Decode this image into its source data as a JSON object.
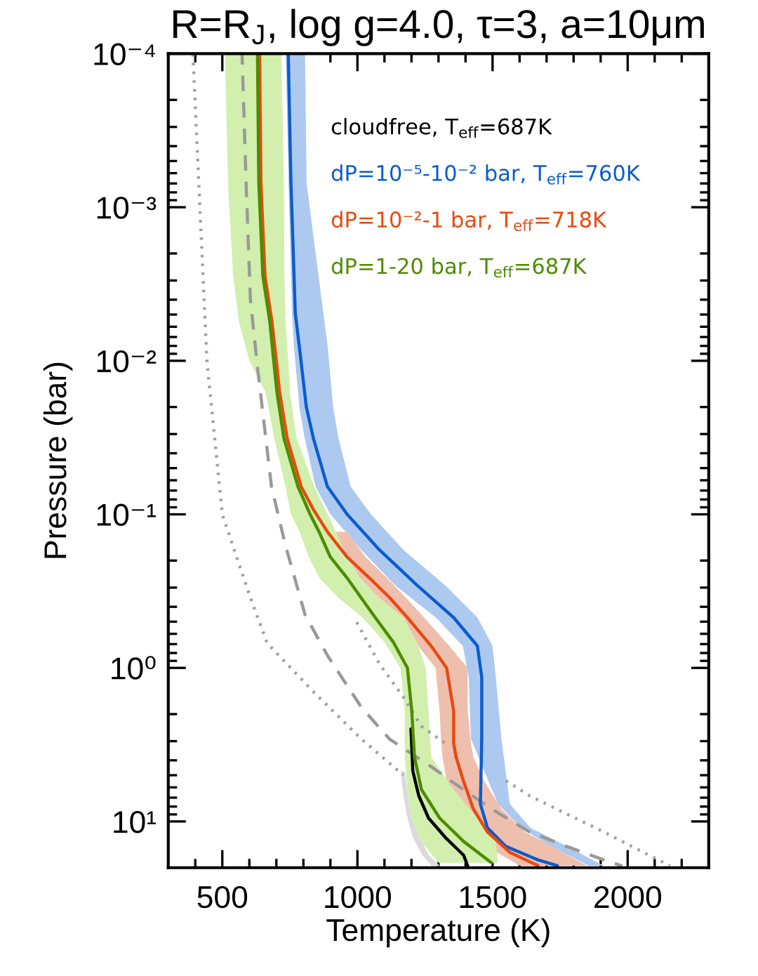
{
  "chart_data": {
    "type": "line",
    "orientation": "horizontal",
    "title": "R=R$_{J}$, log g=4.0, τ=3, a=10μm",
    "xlabel": "Temperature (K)",
    "ylabel": "Pressure (bar)",
    "log": "y",
    "legend": "top right",
    "xlim": [
      300,
      2300
    ],
    "ylim": [
      20,
      0.0001
    ],
    "xticks": [
      {
        "value": 400,
        "label": null
      },
      500,
      {
        "value": 600,
        "label": null
      },
      {
        "value": 700,
        "label": null
      },
      {
        "value": 800,
        "label": null
      },
      {
        "value": 900,
        "label": null
      },
      1000,
      {
        "value": 1100,
        "label": null
      },
      {
        "value": 1200,
        "label": null
      },
      {
        "value": 1300,
        "label": null
      },
      {
        "value": 1400,
        "label": null
      },
      1500,
      {
        "value": 1600,
        "label": null
      },
      {
        "value": 1700,
        "label": null
      },
      {
        "value": 1800,
        "label": null
      },
      {
        "value": 1900,
        "label": null
      },
      2000,
      {
        "value": 2100,
        "label": null
      },
      {
        "value": 2200,
        "label": null
      }
    ],
    "yticks": [
      {
        "value": 0.0001,
        "label": "10⁻⁴"
      },
      {
        "value": 0.0002,
        "label": null
      },
      {
        "value": 0.0003,
        "label": null
      },
      {
        "value": 0.0004,
        "label": null
      },
      {
        "value": 0.0005,
        "label": null
      },
      {
        "value": 0.0006,
        "label": null
      },
      {
        "value": 0.0007,
        "label": null
      },
      {
        "value": 0.0008,
        "label": null
      },
      {
        "value": 0.0009,
        "label": null
      },
      {
        "value": 0.001,
        "label": "10⁻³"
      },
      {
        "value": 0.002,
        "label": null
      },
      {
        "value": 0.003,
        "label": null
      },
      {
        "value": 0.004,
        "label": null
      },
      {
        "value": 0.005,
        "label": null
      },
      {
        "value": 0.006,
        "label": null
      },
      {
        "value": 0.007,
        "label": null
      },
      {
        "value": 0.008,
        "label": null
      },
      {
        "value": 0.009,
        "label": null
      },
      {
        "value": 0.01,
        "label": "10⁻²"
      },
      {
        "value": 0.02,
        "label": null
      },
      {
        "value": 0.03,
        "label": null
      },
      {
        "value": 0.04,
        "label": null
      },
      {
        "value": 0.05,
        "label": null
      },
      {
        "value": 0.06,
        "label": null
      },
      {
        "value": 0.07,
        "label": null
      },
      {
        "value": 0.08,
        "label": null
      },
      {
        "value": 0.09,
        "label": null
      },
      {
        "value": 0.1,
        "label": "10⁻¹"
      },
      {
        "value": 0.2,
        "label": null
      },
      {
        "value": 0.3,
        "label": null
      },
      {
        "value": 0.4,
        "label": null
      },
      {
        "value": 0.5,
        "label": null
      },
      {
        "value": 0.6,
        "label": null
      },
      {
        "value": 0.7,
        "label": null
      },
      {
        "value": 0.8,
        "label": null
      },
      {
        "value": 0.9,
        "label": null
      },
      {
        "value": 1,
        "label": "10⁰"
      },
      {
        "value": 2,
        "label": null
      },
      {
        "value": 3,
        "label": null
      },
      {
        "value": 4,
        "label": null
      },
      {
        "value": 5,
        "label": null
      },
      {
        "value": 6,
        "label": null
      },
      {
        "value": 7,
        "label": null
      },
      {
        "value": 8,
        "label": null
      },
      {
        "value": 9,
        "label": null
      },
      {
        "value": 10,
        "label": "10¹"
      }
    ],
    "series": [
      {
        "color": "#a0a0a0",
        "line_style": "dotted",
        "x": [
          0.0001,
          0.01,
          0.1,
          0.33,
          0.69,
          1.43,
          2.9,
          5.0
        ],
        "values": [
          391,
          443,
          500,
          599,
          666,
          837,
          1014,
          1170
        ]
      },
      {
        "color": "#a0a0a0",
        "line_style": "dotted",
        "x": [
          0.47,
          0.94,
          1.55,
          2.4,
          3.1,
          4.1,
          5.2,
          6.8,
          8.9,
          11.7,
          15.7,
          19.4
        ],
        "values": [
          988,
          1081,
          1170,
          1237,
          1325,
          null,
          1533,
          1637,
          1772,
          1912,
          2052,
          2156
        ]
      },
      {
        "color": "#999999",
        "line_style": "dashed",
        "x": [
          0.0001,
          0.0007,
          0.004,
          0.011,
          0.066,
          0.16,
          0.45,
          0.83,
          1.8,
          2.9,
          4.4,
          5.6,
          8.3,
          11.7,
          14.5,
          17.8,
          19.5
        ],
        "values": [
          573,
          588,
          604,
          630,
          682,
          734,
          806,
          889,
          1014,
          1118,
          1273,
          1356,
          1496,
          1637,
          1772,
          1912,
          1980
        ]
      },
      {
        "name": "cloudfree, T$_{eff}$=687K",
        "color": "#000000",
        "line_style": "solid",
        "x": [
          2.5,
          4.7,
          6.8,
          9.5,
          12.7,
          16.6,
          19.5
        ],
        "values": [
          1198,
          1205,
          1227,
          1263,
          1325,
          1393,
          1408
        ],
        "lower": [
          null,
          1160,
          1170,
          1185,
          1205,
          1240,
          1275
        ],
        "upper": [
          null,
          1175,
          1188,
          1201,
          1230,
          1265,
          1305
        ]
      },
      {
        "name": "dP=10⁻⁵-10⁻² bar, T$_{eff}$=760K",
        "color": "#0a5cd0",
        "line_style": "solid",
        "x": [
          0.0001,
          0.0007,
          0.0049,
          0.0081,
          0.02,
          0.032,
          0.066,
          0.1,
          0.17,
          0.29,
          0.47,
          0.72,
          1.15,
          2.9,
          7.7,
          11,
          14.5,
          17.8,
          19.4
        ],
        "values": [
          744,
          754,
          770,
          785,
          811,
          837,
          889,
          962,
          1081,
          1221,
          1356,
          1444,
          1460,
          1460,
          1455,
          1481,
          1548,
          1668,
          1740
        ],
        "lower": [
          735,
          745,
          758,
          765,
          785,
          805,
          845,
          900,
          1014,
          1140,
          1290,
          1390,
          1412,
          1420,
          1520,
          1605,
          1715,
          1815,
          1855
        ],
        "upper": [
          806,
          812,
          874,
          890,
          910,
          930,
          975,
          1050,
          1170,
          1325,
          1444,
          1500,
          1512,
          1533,
          1564,
          1640,
          1775,
          1870,
          1912
        ]
      },
      {
        "name": "dP=10⁻²-1 bar, T$_{eff}$=718K",
        "color": "#e84a10",
        "line_style": "solid",
        "x": [
          0.0001,
          0.0007,
          0.0028,
          0.0056,
          0.01,
          0.016,
          0.032,
          0.066,
          0.093,
          0.13,
          0.19,
          0.26,
          0.35,
          0.47,
          0.72,
          1.0,
          1.9,
          3.1,
          3.8,
          5.5,
          8.3,
          11.7,
          15.9,
          19.4
        ],
        "values": [
          638,
          643,
          658,
          684,
          700,
          712,
          740,
          792,
          837,
          889,
          962,
          1045,
          1120,
          1185,
          1273,
          1330,
          1356,
          1356,
          1365,
          1393,
          1429,
          1481,
          1564,
          1668
        ],
        "lower": [
          null,
          null,
          null,
          null,
          null,
          null,
          null,
          null,
          null,
          920,
          960,
          1010,
          1080,
          1170,
          1225,
          1289,
          1304,
          1310,
          1315,
          1330,
          1410,
          1482,
          1516,
          1600
        ],
        "upper": [
          null,
          null,
          null,
          null,
          null,
          null,
          null,
          null,
          null,
          962,
          1030,
          1110,
          1180,
          1247,
          1340,
          1408,
          1408,
          1420,
          1429,
          1470,
          1533,
          1620,
          1760,
          1850
        ]
      },
      {
        "name": "dP=1-20 bar, T$_{eff}$=687K",
        "color": "#4e8c00",
        "line_style": "solid",
        "x": [
          0.0001,
          0.0007,
          0.0028,
          0.0056,
          0.01,
          0.016,
          0.032,
          0.066,
          0.1,
          0.13,
          0.19,
          0.26,
          0.35,
          0.47,
          0.68,
          1.0,
          1.9,
          3.8,
          6.2,
          9.5,
          13.5,
          18.6
        ],
        "values": [
          630,
          635,
          650,
          676,
          690,
          702,
          728,
          780,
          825,
          858,
          900,
          962,
          1014,
          1066,
          1133,
          1185,
          1201,
          1211,
          1237,
          1304,
          1393,
          1496
        ],
        "lower": [
          510,
          521,
          540,
          562,
          600,
          660,
          692,
          734,
          754,
          786,
          820,
          860,
          930,
          1019,
          1100,
          1159,
          1175,
          1175,
          1185,
          1201,
          1237,
          1300
        ],
        "upper": [
          718,
          728,
          730,
          734,
          744,
          750,
          775,
          840,
          890,
          920,
          960,
          1010,
          1080,
          1170,
          1220,
          1253,
          1263,
          1273,
          1356,
          1444,
          1512,
          1520
        ]
      }
    ]
  }
}
